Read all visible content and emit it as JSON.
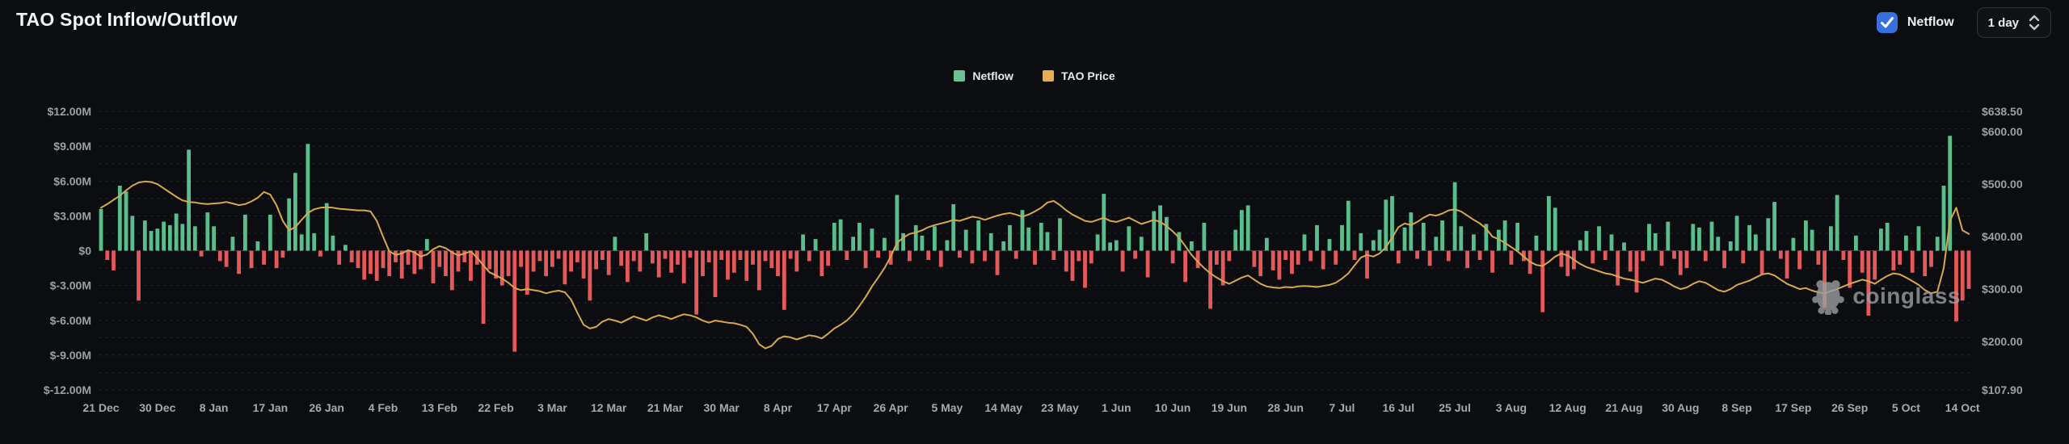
{
  "header": {
    "title": "TAO Spot Inflow/Outflow",
    "netflow_checkbox": {
      "label": "Netflow",
      "checked": true
    },
    "interval_select": {
      "value": "1 day"
    }
  },
  "watermark": {
    "text": "coinglass"
  },
  "colors": {
    "background": "#0b0d10",
    "positive_bar": "#5abd8c",
    "negative_bar": "#e45959",
    "price_line": "#d7a84e",
    "legend_netflow_swatch": "#6cbf92",
    "legend_price_swatch": "#e3ae55",
    "gridline": "#282c31",
    "zero_line": "#3c4248",
    "axis_text": "#9aa0a6",
    "checkbox_blue": "#3570dd"
  },
  "chart_data": {
    "type": "bar",
    "title": "TAO Spot Inflow/Outflow",
    "grid": "horizontal-dashed",
    "legend_position": "top-center",
    "legend": [
      {
        "label": "Netflow",
        "color": "#6cbf92"
      },
      {
        "label": "TAO Price",
        "color": "#e3ae55"
      }
    ],
    "x_start_label": "21 Dec",
    "x_tick_step_days": 9,
    "x_tick_labels": [
      "21 Dec",
      "30 Dec",
      "8 Jan",
      "17 Jan",
      "26 Jan",
      "4 Feb",
      "13 Feb",
      "22 Feb",
      "3 Mar",
      "12 Mar",
      "21 Mar",
      "30 Mar",
      "8 Apr",
      "17 Apr",
      "26 Apr",
      "5 May",
      "14 May",
      "23 May",
      "1 Jun",
      "10 Jun",
      "19 Jun",
      "28 Jun",
      "7 Jul",
      "16 Jul",
      "25 Jul",
      "3 Aug",
      "12 Aug",
      "21 Aug",
      "30 Aug",
      "8 Sep",
      "17 Sep",
      "26 Sep",
      "5 Oct",
      "14 Oct"
    ],
    "left_axis": {
      "unit": "USD millions",
      "min": -12,
      "max": 12,
      "gridline_step": 1.5,
      "ticks": [
        {
          "label": "$12.00M",
          "value": 12
        },
        {
          "label": "$9.00M",
          "value": 9
        },
        {
          "label": "$6.00M",
          "value": 6
        },
        {
          "label": "$3.00M",
          "value": 3
        },
        {
          "label": "$0",
          "value": 0
        },
        {
          "label": "$-3.00M",
          "value": -3
        },
        {
          "label": "$-6.00M",
          "value": -6
        },
        {
          "label": "$-9.00M",
          "value": -9
        },
        {
          "label": "$-12.00M",
          "value": -12
        }
      ]
    },
    "right_axis": {
      "unit": "USD",
      "min": 107.9,
      "max": 638.5,
      "ticks": [
        {
          "label": "$638.50",
          "value": 638.5
        },
        {
          "label": "$600.00",
          "value": 600
        },
        {
          "label": "$500.00",
          "value": 500
        },
        {
          "label": "$400.00",
          "value": 400
        },
        {
          "label": "$300.00",
          "value": 300
        },
        {
          "label": "$200.00",
          "value": 200
        },
        {
          "label": "$107.90",
          "value": 107.9
        }
      ]
    },
    "series": [
      {
        "name": "Netflow",
        "type": "bar",
        "axis": "left",
        "unit": "USD millions",
        "values": [
          3.6,
          -0.8,
          -1.7,
          5.6,
          5.1,
          3.0,
          -4.3,
          2.6,
          1.7,
          1.9,
          2.5,
          2.2,
          3.2,
          2.3,
          8.7,
          2.1,
          -0.5,
          3.3,
          2.1,
          -0.9,
          -1.4,
          1.2,
          -2.0,
          3.1,
          -1.5,
          0.8,
          -1.2,
          3.1,
          -1.5,
          -0.6,
          4.5,
          6.7,
          1.4,
          9.2,
          1.5,
          -0.5,
          4.1,
          1.3,
          -1.2,
          0.5,
          -1.0,
          -1.5,
          -2.5,
          -2.0,
          -2.6,
          -1.5,
          -2.2,
          -1.0,
          -2.4,
          -1.2,
          -2.0,
          -1.6,
          1.0,
          -2.8,
          -1.4,
          -2.2,
          -3.4,
          -1.8,
          -1.0,
          -2.6,
          -1.2,
          -6.3,
          -1.6,
          -2.4,
          -3.0,
          -2.2,
          -8.7,
          -1.4,
          -3.8,
          -1.8,
          -0.9,
          -2.2,
          -1.4,
          -0.7,
          -2.9,
          -1.8,
          -1.0,
          -2.4,
          -4.3,
          -1.6,
          -0.8,
          -2.1,
          1.2,
          -1.3,
          -2.7,
          -0.9,
          -1.8,
          1.5,
          -1.1,
          -2.3,
          -0.7,
          -1.9,
          -1.2,
          -2.8,
          -0.6,
          -5.5,
          -2.2,
          -1.0,
          -4.0,
          -0.8,
          -2.5,
          -1.9,
          -0.8,
          -2.6,
          -1.2,
          -3.4,
          -0.9,
          -1.5,
          -2.2,
          -5.1,
          -0.7,
          -1.8,
          1.4,
          -0.9,
          1.0,
          -2.2,
          -1.3,
          2.4,
          2.7,
          -0.8,
          1.2,
          2.4,
          -1.5,
          1.9,
          -0.6,
          1.1,
          -1.2,
          4.8,
          1.5,
          -0.9,
          2.2,
          1.3,
          -0.8,
          2.1,
          -1.4,
          0.9,
          4.0,
          -0.6,
          1.8,
          -1.1,
          2.6,
          -0.9,
          1.5,
          -2.1,
          0.8,
          2.2,
          -0.7,
          3.5,
          2.0,
          -1.2,
          2.4,
          1.6,
          -0.8,
          2.8,
          -1.8,
          -2.6,
          -0.9,
          -3.2,
          -1.1,
          1.4,
          4.9,
          0.7,
          0.9,
          -1.8,
          2.1,
          -0.7,
          1.2,
          -2.3,
          3.4,
          3.9,
          2.9,
          -1.1,
          1.6,
          -2.7,
          0.8,
          -1.5,
          2.4,
          -5.0,
          -1.2,
          -3.0,
          -0.9,
          1.8,
          3.5,
          3.9,
          -1.4,
          -2.2,
          1.1,
          -1.7,
          -2.5,
          -0.8,
          -2.0,
          -1.2,
          1.4,
          -0.9,
          2.2,
          -1.6,
          1.0,
          -1.2,
          2.2,
          4.3,
          -0.8,
          1.5,
          -2.4,
          0.9,
          1.8,
          4.4,
          4.7,
          -1.1,
          2.0,
          3.3,
          -0.7,
          2.4,
          -1.3,
          1.2,
          2.6,
          -0.9,
          5.9,
          2.1,
          -1.5,
          1.4,
          -0.8,
          2.3,
          -1.9,
          1.8,
          2.6,
          -1.2,
          2.4,
          -0.9,
          -2.0,
          1.3,
          -5.3,
          4.7,
          3.7,
          -1.4,
          -2.2,
          -1.6,
          0.9,
          1.7,
          -1.1,
          2.1,
          -0.8,
          1.4,
          -3.0,
          0.7,
          -1.8,
          -3.6,
          -0.9,
          2.3,
          1.5,
          -1.3,
          2.5,
          -0.7,
          -2.1,
          -1.5,
          2.3,
          2.0,
          -0.9,
          2.5,
          1.2,
          -1.5,
          0.8,
          3.0,
          -1.1,
          2.2,
          1.4,
          -2.0,
          2.8,
          4.2,
          -0.7,
          -2.4,
          1.1,
          -1.6,
          2.6,
          1.8,
          -1.2,
          -4.9,
          2.1,
          4.8,
          -0.8,
          -3.2,
          1.3,
          -1.9,
          -5.6,
          -2.5,
          1.9,
          2.4,
          -1.7,
          -1.2,
          1.3,
          -1.9,
          2.1,
          -2.2,
          -1.4,
          1.2,
          5.6,
          9.9,
          -6.1,
          -4.3,
          -3.3
        ]
      },
      {
        "name": "TAO Price",
        "type": "line",
        "axis": "right",
        "unit": "USD",
        "values": [
          455,
          462,
          470,
          478,
          488,
          497,
          503,
          505,
          504,
          500,
          492,
          484,
          476,
          469,
          466,
          465,
          463,
          462,
          463,
          464,
          466,
          463,
          460,
          462,
          467,
          474,
          485,
          480,
          460,
          430,
          412,
          418,
          432,
          445,
          452,
          455,
          456,
          455,
          453,
          452,
          451,
          450,
          450,
          448,
          430,
          400,
          372,
          365,
          368,
          374,
          370,
          362,
          366,
          376,
          382,
          378,
          370,
          364,
          368,
          372,
          360,
          345,
          332,
          326,
          320,
          312,
          302,
          298,
          300,
          298,
          296,
          292,
          295,
          297,
          294,
          280,
          255,
          232,
          225,
          228,
          238,
          243,
          240,
          236,
          242,
          248,
          244,
          240,
          246,
          250,
          247,
          243,
          248,
          252,
          250,
          246,
          240,
          236,
          240,
          238,
          236,
          235,
          232,
          228,
          215,
          195,
          187,
          192,
          205,
          210,
          208,
          204,
          208,
          212,
          210,
          206,
          215,
          225,
          232,
          240,
          252,
          268,
          285,
          305,
          322,
          340,
          362,
          388,
          398,
          405,
          408,
          412,
          418,
          422,
          425,
          428,
          432,
          430,
          434,
          438,
          436,
          432,
          436,
          440,
          443,
          445,
          442,
          438,
          442,
          448,
          455,
          465,
          468,
          460,
          450,
          442,
          436,
          430,
          428,
          432,
          436,
          430,
          428,
          432,
          436,
          430,
          424,
          428,
          432,
          428,
          420,
          410,
          398,
          382,
          365,
          352,
          340,
          330,
          322,
          315,
          310,
          316,
          322,
          326,
          318,
          310,
          305,
          303,
          302,
          304,
          303,
          305,
          306,
          305,
          304,
          306,
          308,
          312,
          320,
          330,
          345,
          360,
          365,
          362,
          368,
          380,
          398,
          418,
          425,
          422,
          428,
          436,
          442,
          440,
          444,
          450,
          452,
          448,
          440,
          432,
          425,
          415,
          400,
          395,
          388,
          380,
          372,
          362,
          352,
          346,
          344,
          352,
          362,
          368,
          364,
          356,
          348,
          342,
          338,
          334,
          330,
          328,
          324,
          320,
          318,
          315,
          312,
          316,
          320,
          318,
          312,
          305,
          300,
          303,
          310,
          315,
          312,
          305,
          298,
          295,
          300,
          308,
          312,
          316,
          322,
          328,
          330,
          326,
          318,
          310,
          305,
          300,
          302,
          297,
          294,
          292,
          296,
          300,
          305,
          310,
          314,
          318,
          315,
          310,
          318,
          325,
          330,
          328,
          322,
          315,
          308,
          298,
          292,
          295,
          340,
          430,
          455,
          412,
          405
        ]
      }
    ]
  }
}
